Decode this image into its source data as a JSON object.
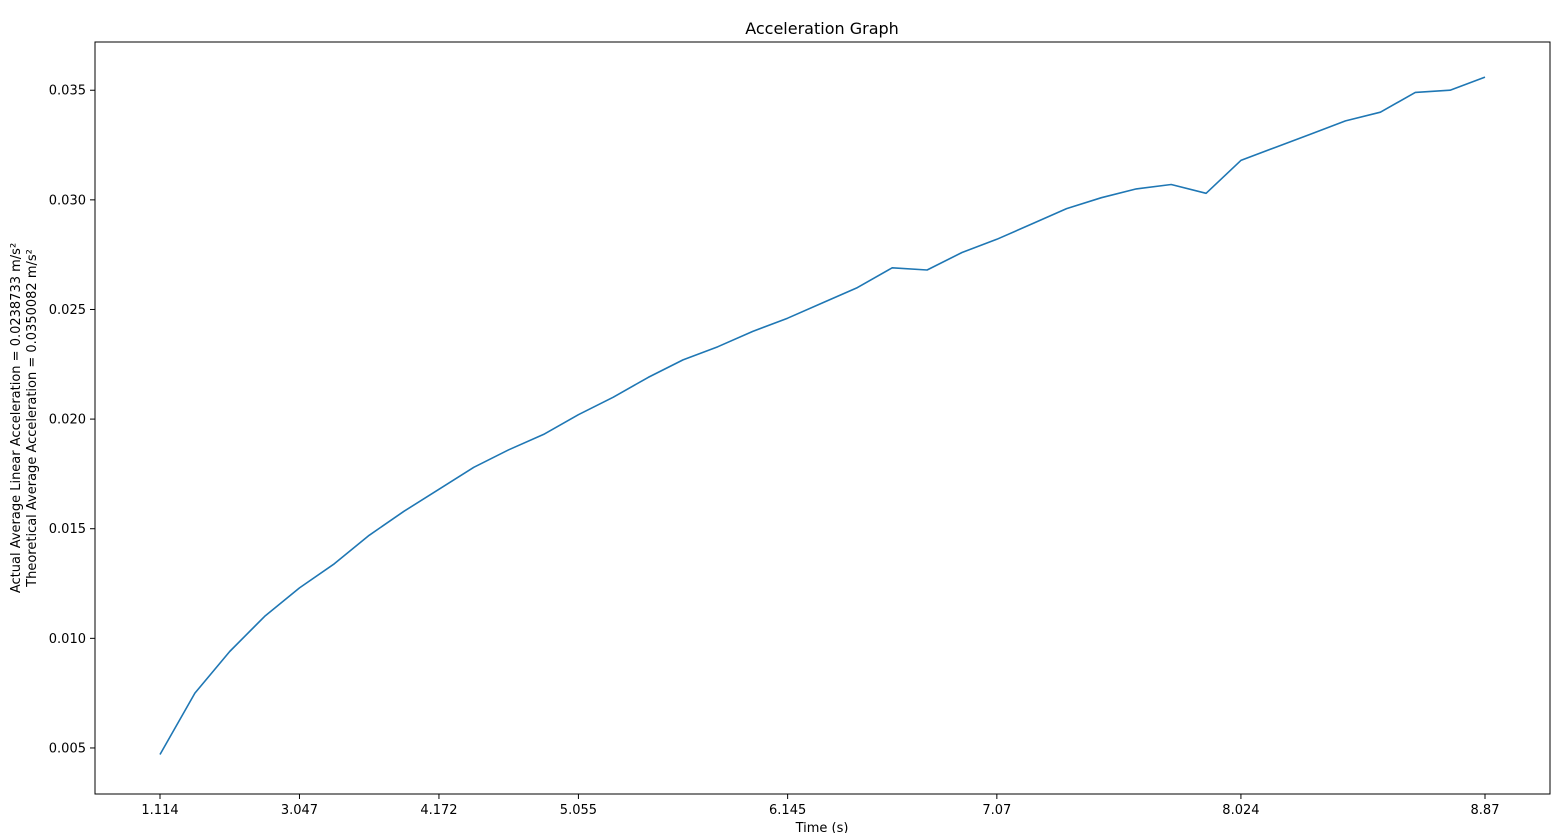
{
  "chart_data": {
    "type": "line",
    "title": "Acceleration Graph",
    "xlabel": "Time (s)",
    "ylabel_lines": [
      "Actual Average Linear Acceleration = 0.0238733 m/s²",
      "Theoretical Average Acceleration = 0.0350082 m/s²"
    ],
    "x_ticks": [
      "1.114",
      "3.047",
      "4.172",
      "5.055",
      "6.145",
      "7.07",
      "8.024",
      "8.87"
    ],
    "y_ticks": [
      "0.005",
      "0.010",
      "0.015",
      "0.020",
      "0.025",
      "0.030",
      "0.035"
    ],
    "grid": false,
    "line_color": "#1f77b4",
    "ylim": [
      0.0029,
      0.0372
    ],
    "series": [
      {
        "values": [
          0.0047,
          0.0075,
          0.0094,
          0.011,
          0.0123,
          0.0134,
          0.0147,
          0.0158,
          0.0168,
          0.0178,
          0.0186,
          0.0193,
          0.0202,
          0.021,
          0.0219,
          0.0227,
          0.0233,
          0.024,
          0.0246,
          0.0253,
          0.026,
          0.0269,
          0.0268,
          0.0276,
          0.0282,
          0.0289,
          0.0296,
          0.0301,
          0.0305,
          0.0307,
          0.0303,
          0.0318,
          0.0324,
          0.033,
          0.0336,
          0.034,
          0.0349,
          0.035,
          0.0356
        ]
      }
    ]
  }
}
